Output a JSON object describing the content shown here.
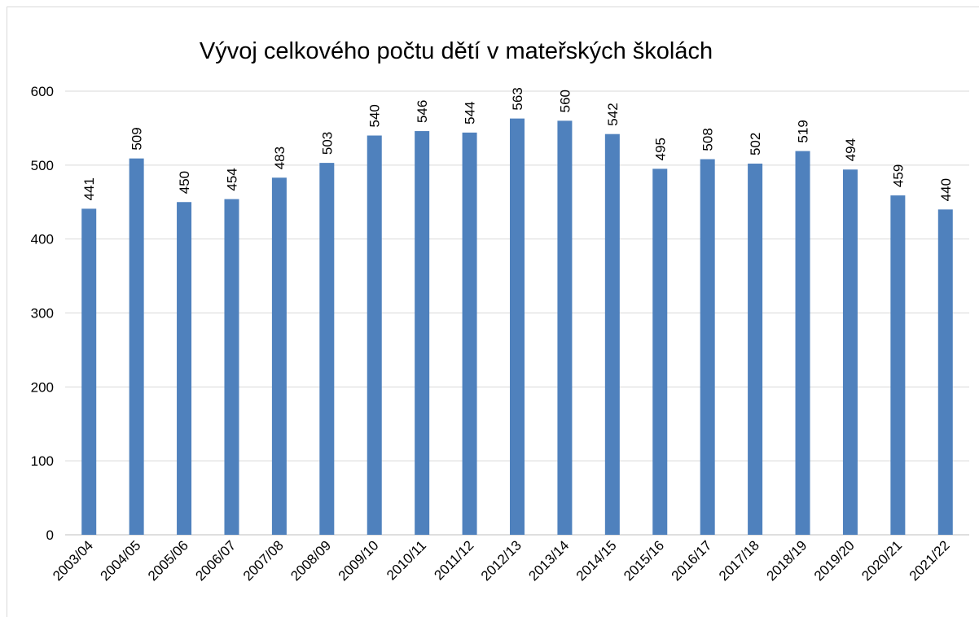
{
  "chart_data": {
    "type": "bar",
    "title": "Vývoj celkového počtu dětí v mateřských školách",
    "categories": [
      "2003/04",
      "2004/05",
      "2005/06",
      "2006/07",
      "2007/08",
      "2008/09",
      "2009/10",
      "2010/11",
      "2011/12",
      "2012/13",
      "2013/14",
      "2014/15",
      "2015/16",
      "2016/17",
      "2017/18",
      "2018/19",
      "2019/20",
      "2020/21",
      "2021/22"
    ],
    "values": [
      441,
      509,
      450,
      454,
      483,
      503,
      540,
      546,
      544,
      563,
      560,
      542,
      495,
      508,
      502,
      519,
      494,
      459,
      440
    ],
    "color": "#4f81bd",
    "ylim": [
      0,
      600
    ],
    "yticks": [
      0,
      100,
      200,
      300,
      400,
      500,
      600
    ],
    "grid": true
  }
}
